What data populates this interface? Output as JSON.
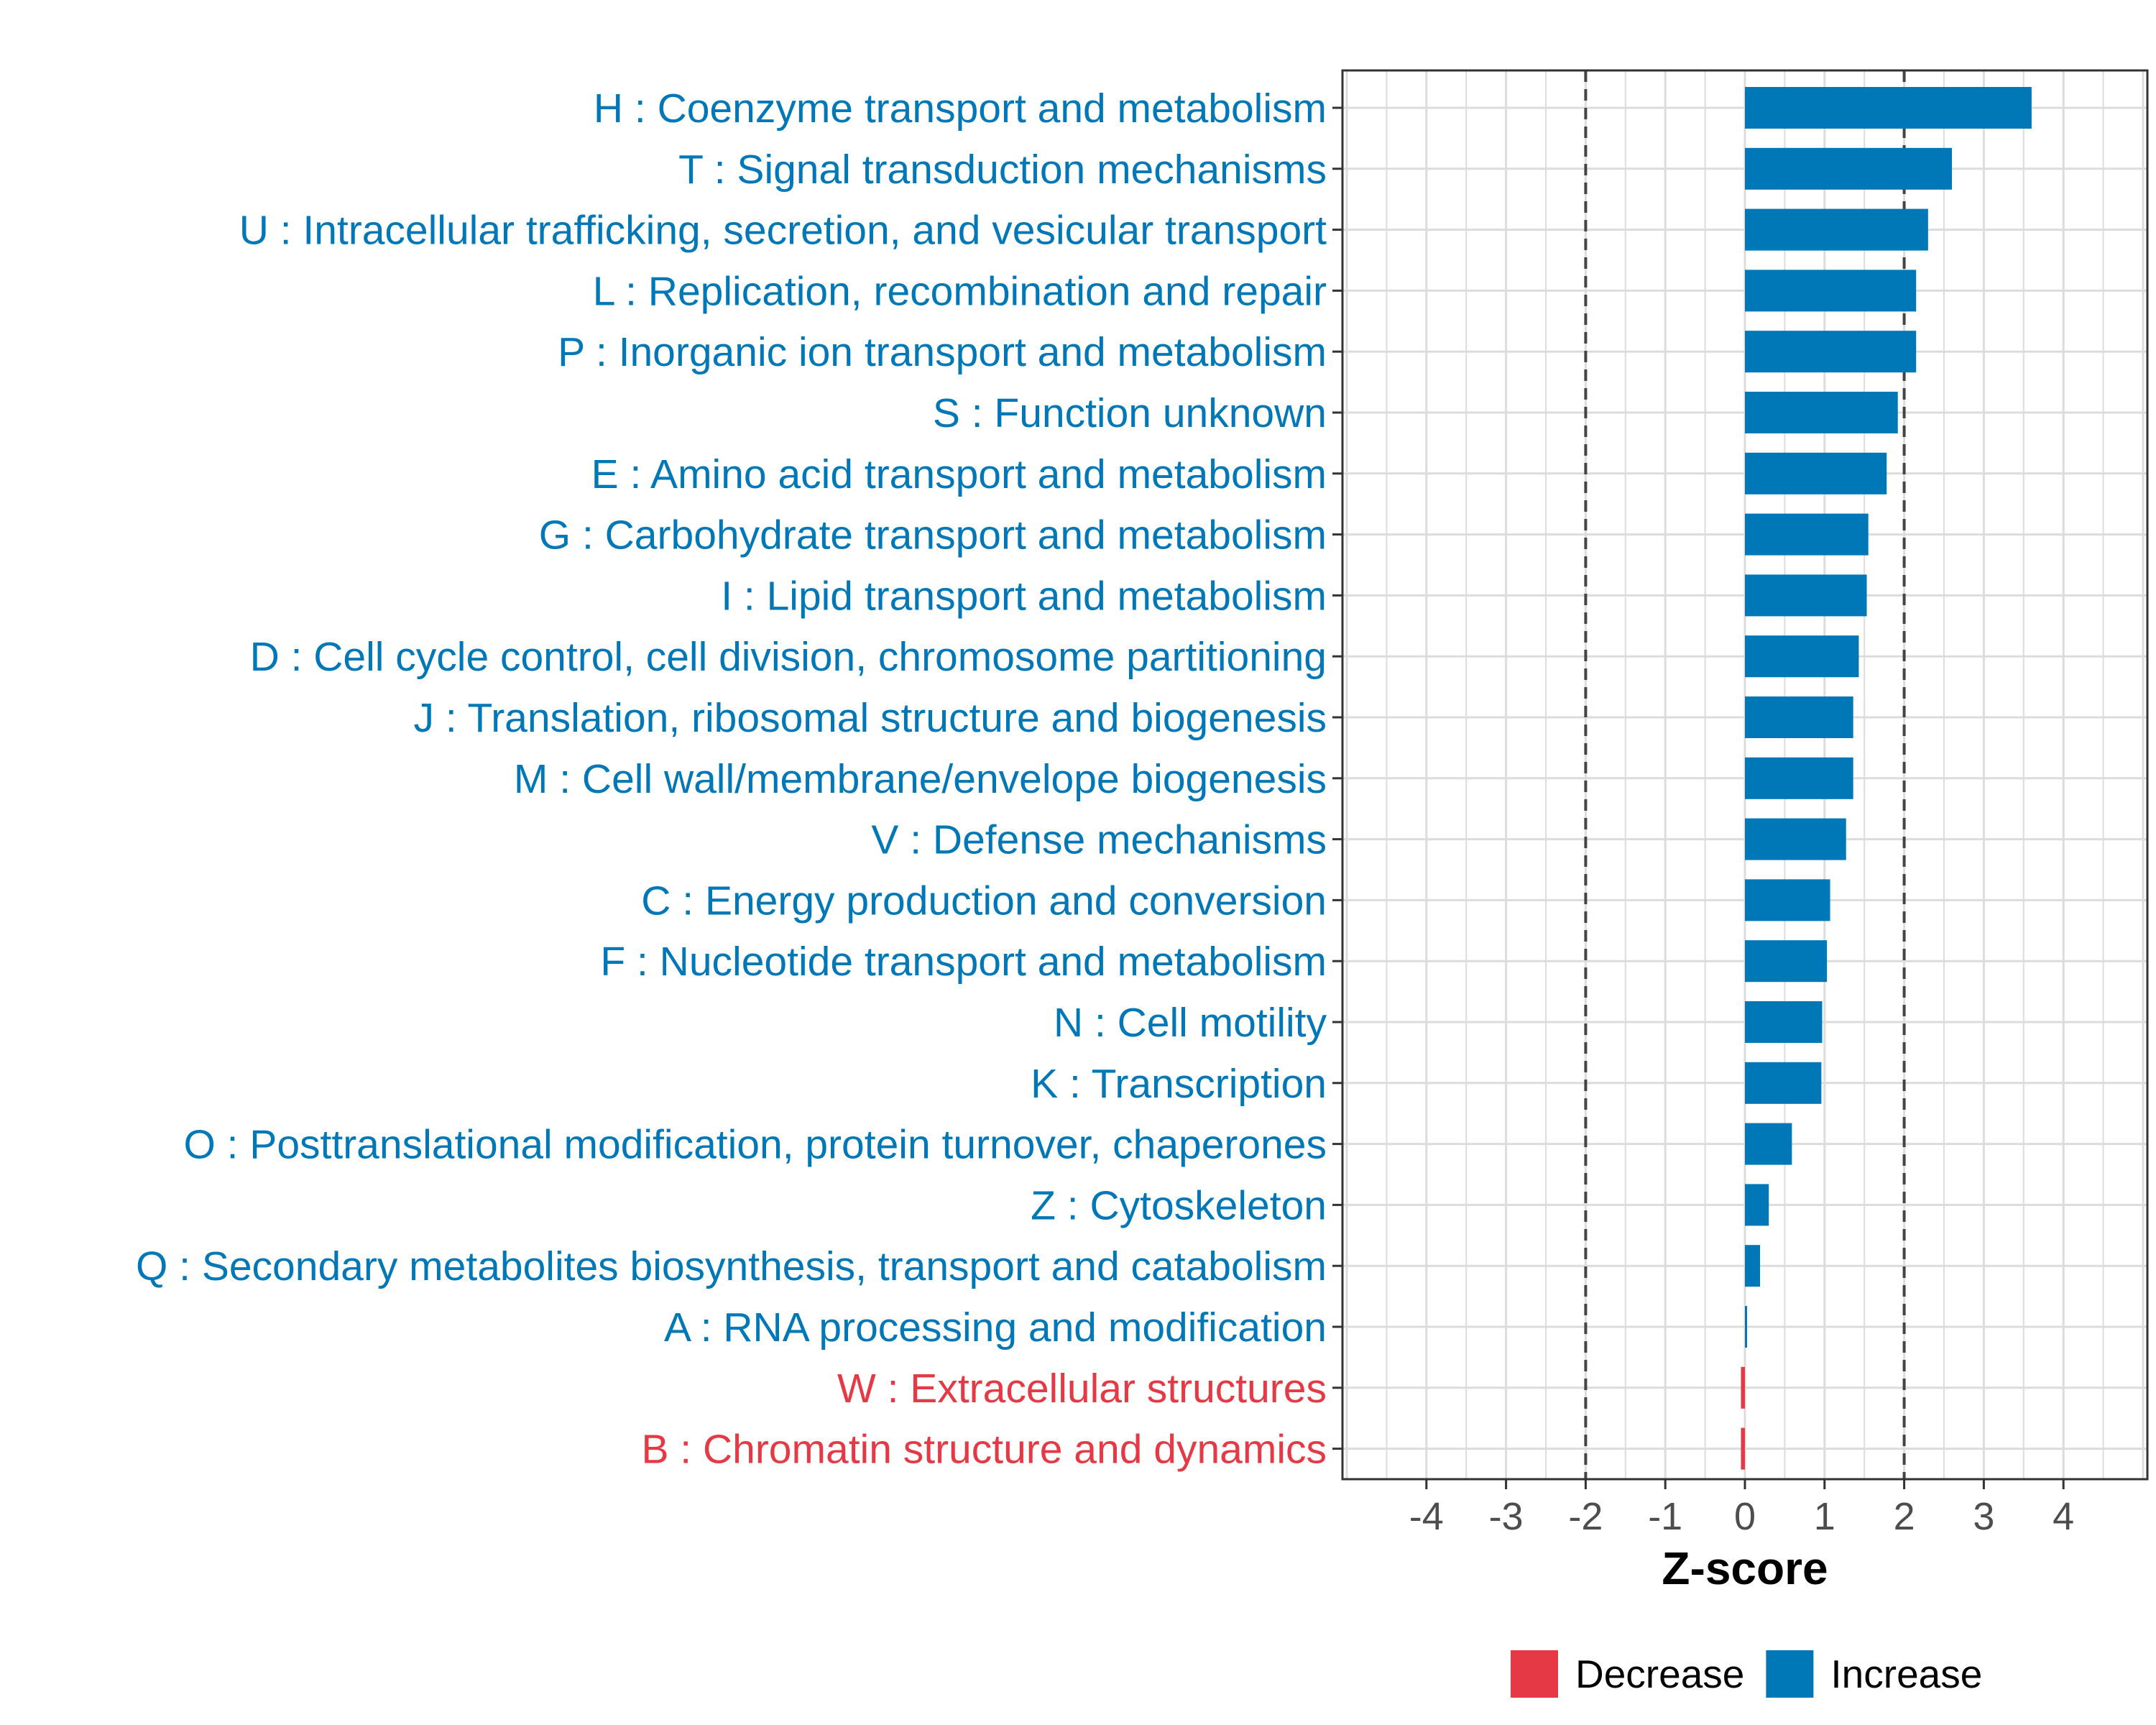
{
  "chart_data": {
    "type": "bar",
    "orientation": "horizontal",
    "xlabel": "Z-score",
    "ylabel": "",
    "xlim": [
      -5.3,
      5.3
    ],
    "xticks": [
      -4,
      -3,
      -2,
      -1,
      0,
      1,
      2,
      3,
      4
    ],
    "xtick_labels": [
      "-4",
      "-3",
      "-2",
      "-1",
      "0",
      "1",
      "2",
      "3",
      "4"
    ],
    "reference_lines": [
      -2,
      2
    ],
    "grid": true,
    "categories": [
      "H : Coenzyme transport and metabolism",
      "T : Signal transduction mechanisms",
      "U : Intracellular trafficking, secretion, and vesicular transport",
      "L : Replication, recombination and repair",
      "P : Inorganic ion transport and metabolism",
      "S : Function unknown",
      "E : Amino acid transport and metabolism",
      "G : Carbohydrate transport and metabolism",
      "I : Lipid transport and metabolism",
      "D : Cell cycle control, cell division, chromosome partitioning",
      "J : Translation, ribosomal structure and biogenesis",
      "M : Cell wall/membrane/envelope biogenesis",
      "V : Defense mechanisms",
      "C : Energy production and conversion",
      "F : Nucleotide transport and metabolism",
      "N : Cell motility",
      "K : Transcription",
      "O : Posttranslational modification, protein turnover, chaperones",
      "Z : Cytoskeleton",
      "Q : Secondary metabolites biosynthesis, transport and catabolism",
      "A : RNA processing and modification",
      "W : Extracellular structures",
      "B : Chromatin structure and dynamics"
    ],
    "values": [
      3.6,
      2.6,
      2.3,
      2.15,
      2.15,
      1.92,
      1.78,
      1.55,
      1.53,
      1.43,
      1.36,
      1.36,
      1.27,
      1.07,
      1.03,
      0.97,
      0.96,
      0.59,
      0.3,
      0.19,
      0.01,
      -0.05,
      -0.05
    ],
    "groups": [
      "Increase",
      "Increase",
      "Increase",
      "Increase",
      "Increase",
      "Increase",
      "Increase",
      "Increase",
      "Increase",
      "Increase",
      "Increase",
      "Increase",
      "Increase",
      "Increase",
      "Increase",
      "Increase",
      "Increase",
      "Increase",
      "Increase",
      "Increase",
      "Increase",
      "Decrease",
      "Decrease"
    ],
    "legend": {
      "position": "bottom",
      "entries": [
        {
          "label": "Decrease",
          "color": "#e63946"
        },
        {
          "label": "Increase",
          "color": "#0077b6"
        }
      ]
    },
    "colors": {
      "Decrease": "#e63946",
      "Increase": "#0077b6"
    }
  }
}
